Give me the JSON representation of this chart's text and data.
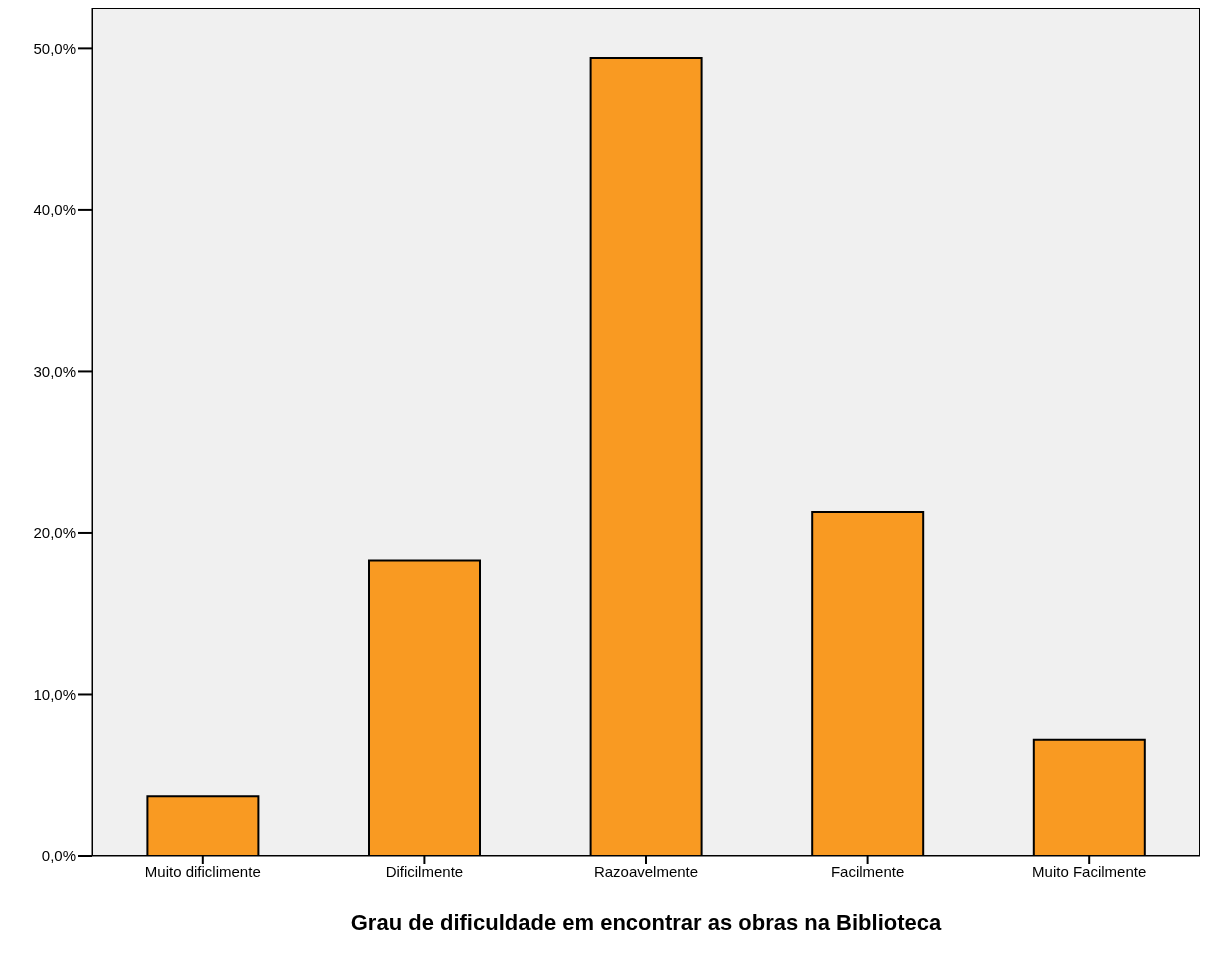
{
  "chart_data": {
    "type": "bar",
    "xlabel": "Grau de dificuldade em encontrar as obras na Biblioteca",
    "categories": [
      "Muito dificlimente",
      "Dificilmente",
      "Razoavelmente",
      "Facilmente",
      "Muito Facilmente"
    ],
    "values": [
      3.7,
      18.3,
      49.4,
      21.3,
      7.2
    ],
    "color": "#f99a22",
    "ylim": [
      0,
      52.5
    ],
    "yticks": [
      {
        "value": 0,
        "label": "0,0%"
      },
      {
        "value": 10,
        "label": "10,0%"
      },
      {
        "value": 20,
        "label": "20,0%"
      },
      {
        "value": 30,
        "label": "30,0%"
      },
      {
        "value": 40,
        "label": "40,0%"
      },
      {
        "value": 50,
        "label": "50,0%"
      }
    ],
    "grid": false,
    "legend": false
  }
}
